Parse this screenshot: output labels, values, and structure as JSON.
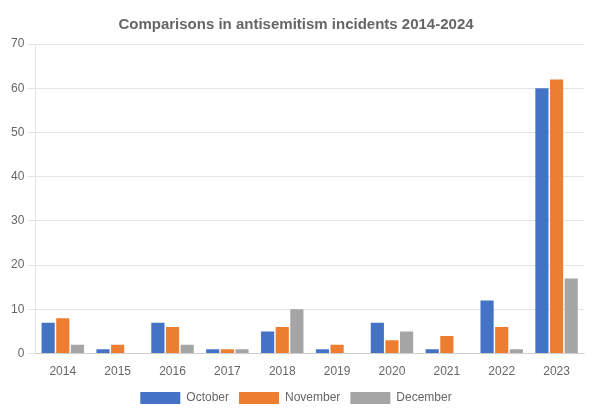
{
  "chart_data": {
    "type": "bar",
    "title": "Comparisons in antisemitism incidents 2014-2024",
    "categories": [
      "2014",
      "2015",
      "2016",
      "2017",
      "2018",
      "2019",
      "2020",
      "2021",
      "2022",
      "2023"
    ],
    "series": [
      {
        "name": "October",
        "color": "#4472c4",
        "values": [
          7,
          1,
          7,
          1,
          5,
          1,
          7,
          1,
          12,
          60
        ]
      },
      {
        "name": "November",
        "color": "#ed7d31",
        "values": [
          8,
          2,
          6,
          1,
          6,
          2,
          3,
          4,
          6,
          62
        ]
      },
      {
        "name": "December",
        "color": "#a5a5a5",
        "values": [
          2,
          0,
          2,
          1,
          10,
          0,
          5,
          0,
          1,
          17
        ]
      }
    ],
    "ylim": [
      0,
      70
    ],
    "yticks": [
      0,
      10,
      20,
      30,
      40,
      50,
      60,
      70
    ],
    "grid": true,
    "legend": "bottom"
  }
}
